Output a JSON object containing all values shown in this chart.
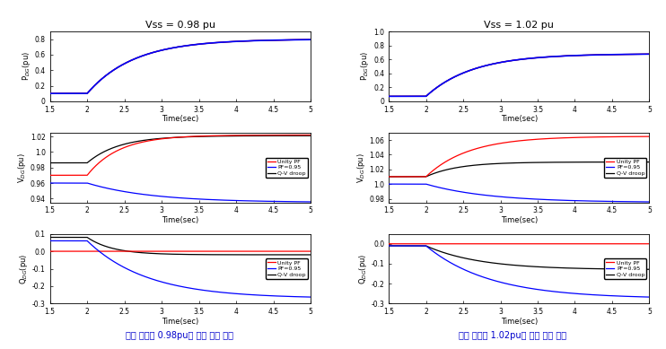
{
  "title_left": "Vss = 0.98 pu",
  "title_right": "Vss = 1.02 pu",
  "caption_left": "송출 전압이 0.98pu인 경우 모의 결과",
  "caption_right": "송출 전압이 1.02pu인 경우 모의 결과",
  "xlabel": "Time(sec)",
  "ylabel_p": "P$_{DG}$(pu)",
  "ylabel_v": "V$_{DG}$(pu)",
  "ylabel_q": "Q$_{DG}$(pu)",
  "legend_labels": [
    "Unity PF",
    "PF=0.95",
    "Q-V droop"
  ],
  "colors": {
    "unity": "#FF0000",
    "pf095": "#0000FF",
    "droop": "#000000"
  },
  "lw": 0.9,
  "left": {
    "P": {
      "p_before": 0.1,
      "p_after": 0.8,
      "ramp_dur": 2.2
    },
    "V": {
      "before_unity": 0.97,
      "after_unity": 1.022,
      "dur_unity": 1.5,
      "before_pf": 0.96,
      "after_pf": 0.935,
      "dur_pf": 3.0,
      "before_droop": 0.986,
      "after_droop": 1.021,
      "dur_droop": 1.5
    },
    "Q": {
      "before_unity": 0.0,
      "after_unity": 0.0,
      "dur_unity": 2.5,
      "before_pf": 0.06,
      "after_pf": -0.27,
      "dur_pf": 2.8,
      "before_droop": 0.08,
      "after_droop": -0.02,
      "dur_droop": 1.2
    },
    "ylim_p": [
      0,
      0.9
    ],
    "ylim_v": [
      0.935,
      1.025
    ],
    "ylim_q": [
      -0.3,
      0.1
    ],
    "yticks_p": [
      0,
      0.2,
      0.4,
      0.6,
      0.8
    ],
    "yticks_v": [
      0.94,
      0.96,
      0.98,
      1.0,
      1.02
    ],
    "yticks_q": [
      -0.3,
      -0.2,
      -0.1,
      0.0,
      0.1
    ]
  },
  "right": {
    "P": {
      "p_before": 0.07,
      "p_after": 0.68,
      "ramp_dur": 2.2
    },
    "V": {
      "before_unity": 1.01,
      "after_unity": 1.065,
      "dur_unity": 2.0,
      "before_pf": 1.0,
      "after_pf": 0.975,
      "dur_pf": 3.0,
      "before_droop": 1.01,
      "after_droop": 1.03,
      "dur_droop": 1.5
    },
    "Q": {
      "before_unity": 0.0,
      "after_unity": 0.0,
      "dur_unity": 2.5,
      "before_pf": -0.01,
      "after_pf": -0.275,
      "dur_pf": 3.0,
      "before_droop": -0.01,
      "after_droop": -0.13,
      "dur_droop": 2.5
    },
    "ylim_p": [
      0,
      1.0
    ],
    "ylim_v": [
      0.975,
      1.07
    ],
    "ylim_q": [
      -0.3,
      0.05
    ],
    "yticks_p": [
      0,
      0.2,
      0.4,
      0.6,
      0.8,
      1.0
    ],
    "yticks_v": [
      0.98,
      1.0,
      1.02,
      1.04,
      1.06
    ],
    "yticks_q": [
      -0.3,
      -0.2,
      -0.1,
      0.0
    ]
  },
  "xticks": [
    1.5,
    2.0,
    2.5,
    3.0,
    3.5,
    4.0,
    4.5,
    5.0
  ],
  "xticklabels": [
    "1.5",
    "2",
    "2.5",
    "3",
    "3.5",
    "4",
    "4.5",
    "5"
  ]
}
